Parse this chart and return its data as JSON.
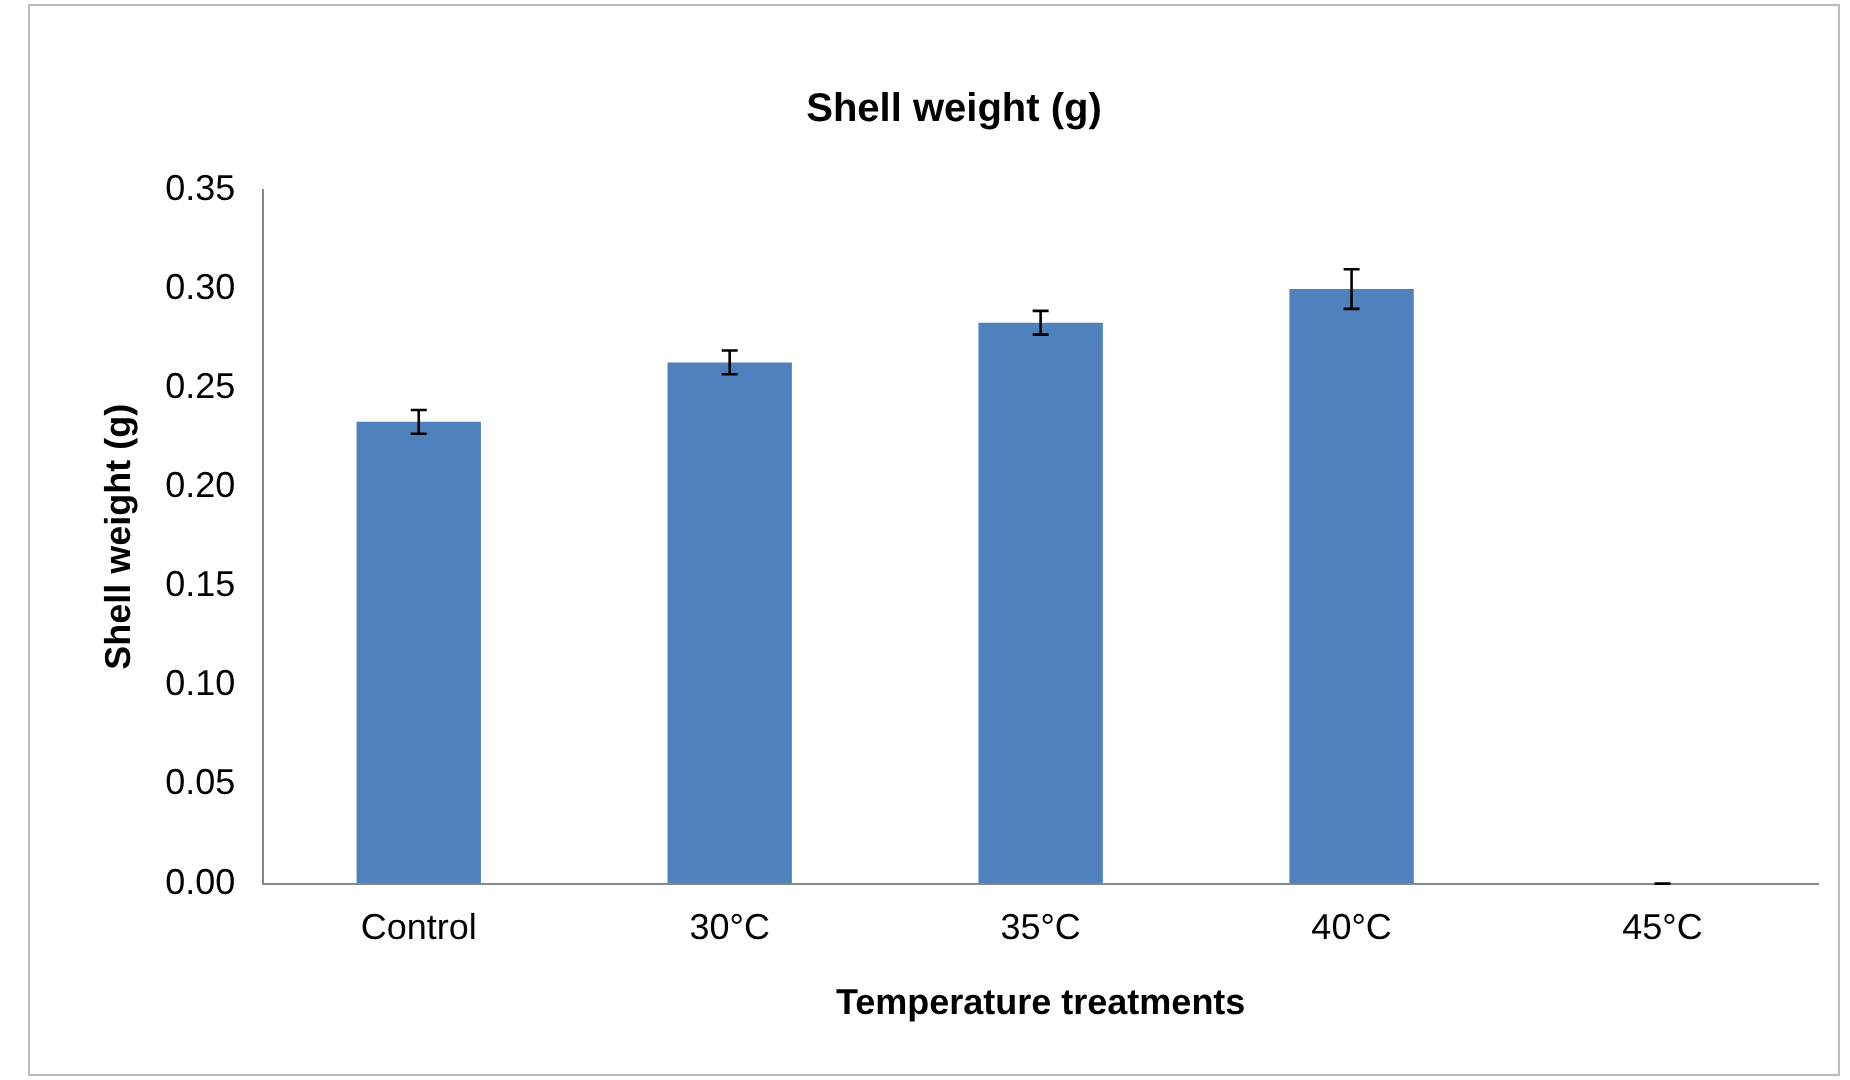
{
  "chart_data": {
    "type": "bar",
    "title": "Shell weight (g)",
    "xlabel": "Temperature treatments",
    "ylabel": "Shell weight (g)",
    "categories": [
      "Control",
      "30°C",
      "35°C",
      "40°C",
      "45°C"
    ],
    "values": [
      0.233,
      0.263,
      0.283,
      0.3,
      0
    ],
    "errors": [
      0.006,
      0.006,
      0.006,
      0.01,
      0
    ],
    "color": "#4f81bd",
    "ylim": [
      0,
      0.35
    ],
    "yticks": [
      {
        "value": 0,
        "label": "0.00"
      },
      {
        "value": 0.05,
        "label": "0.05"
      },
      {
        "value": 0.1,
        "label": "0.10"
      },
      {
        "value": 0.15,
        "label": "0.15"
      },
      {
        "value": 0.2,
        "label": "0.20"
      },
      {
        "value": 0.25,
        "label": "0.25"
      },
      {
        "value": 0.3,
        "label": "0.30"
      },
      {
        "value": 0.35,
        "label": "0.35"
      }
    ],
    "grid": false,
    "legend": false
  }
}
